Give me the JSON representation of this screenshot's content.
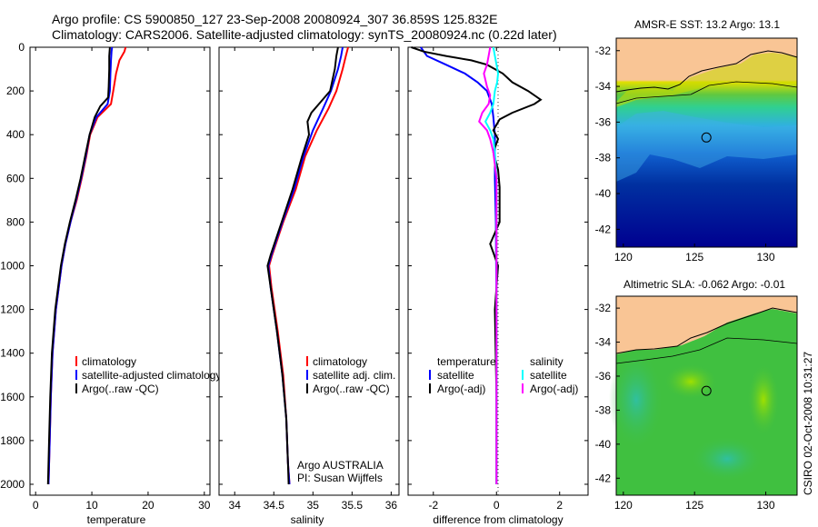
{
  "header": {
    "line1": "Argo profile: CS 5900850_127 23-Sep-2008 20080924_307 36.859S 125.832E",
    "line2": "Climatology: CARS2006. Satellite-adjusted climatology: synTS_20080924.nc (0.22d later)"
  },
  "side_stamp": "CSIRO 02-Oct-2008 10:31:27",
  "colors": {
    "climatology": "#ff0000",
    "satellite": "#0000ff",
    "argo": "#000000",
    "sat_sal": "#00ffff",
    "argo_sal": "#ff00ff",
    "land": "#f9c595"
  },
  "chart_data": [
    {
      "type": "line",
      "id": "temperature",
      "xlabel": "temperature",
      "ylabel": "",
      "xlim": [
        -1,
        31
      ],
      "ylim": [
        2050,
        0
      ],
      "xticks": [
        "0",
        "10",
        "20",
        "30"
      ],
      "yticks": [
        "0",
        "200",
        "400",
        "600",
        "800",
        "1000",
        "1200",
        "1400",
        "1600",
        "1800",
        "2000"
      ],
      "legend": [
        "climatology",
        "satellite-adjusted climatology",
        "Argo(..raw -QC)"
      ],
      "series": [
        {
          "name": "climatology",
          "color": "#ff0000",
          "depth": [
            0,
            20,
            60,
            120,
            200,
            260,
            320,
            400,
            500,
            600,
            700,
            800,
            900,
            1000,
            1200,
            1400,
            1600,
            1800,
            2000
          ],
          "values": [
            16.0,
            15.8,
            14.9,
            14.3,
            13.8,
            13.4,
            11.0,
            9.7,
            9.0,
            8.2,
            7.3,
            6.2,
            5.3,
            4.6,
            3.6,
            3.0,
            2.7,
            2.5,
            2.3
          ]
        },
        {
          "name": "satellite-adjusted climatology",
          "color": "#0000ff",
          "depth": [
            0,
            20,
            60,
            120,
            200,
            260,
            320,
            400,
            500,
            600,
            700,
            800,
            900,
            1000,
            1200,
            1400,
            1600,
            1800,
            2000
          ],
          "values": [
            13.6,
            13.5,
            13.4,
            13.3,
            13.2,
            12.8,
            10.8,
            9.6,
            8.9,
            8.1,
            7.2,
            6.2,
            5.3,
            4.6,
            3.6,
            3.0,
            2.7,
            2.5,
            2.3
          ]
        },
        {
          "name": "Argo(..raw -QC)",
          "color": "#000000",
          "depth": [
            0,
            40,
            100,
            180,
            230,
            250,
            270,
            320,
            400,
            500,
            600,
            700,
            800,
            900,
            1000,
            1200,
            1400,
            1600,
            1800,
            2000
          ],
          "values": [
            13.2,
            13.1,
            13.1,
            13.0,
            12.9,
            12.2,
            11.5,
            10.5,
            9.6,
            8.8,
            8.0,
            7.1,
            6.1,
            5.2,
            4.5,
            3.5,
            2.9,
            2.6,
            2.4,
            2.2
          ]
        }
      ]
    },
    {
      "type": "line",
      "id": "salinity",
      "xlabel": "salinity",
      "ylabel": "",
      "xlim": [
        33.8,
        36.1
      ],
      "ylim": [
        2050,
        0
      ],
      "xticks": [
        "34",
        "34.5",
        "35",
        "35.5",
        "36"
      ],
      "legend": [
        "climatology",
        "satellite adj. clim.",
        "Argo(..raw -QC)"
      ],
      "annotation": [
        "Argo AUSTRALIA",
        "PI: Susan Wijffels"
      ],
      "series": [
        {
          "name": "climatology",
          "color": "#ff0000",
          "depth": [
            0,
            40,
            100,
            200,
            280,
            380,
            500,
            650,
            800,
            950,
            1000,
            1100,
            1300,
            1500,
            1700,
            1900,
            2000
          ],
          "values": [
            35.45,
            35.42,
            35.38,
            35.3,
            35.2,
            35.05,
            34.9,
            34.78,
            34.62,
            34.48,
            34.44,
            34.47,
            34.55,
            34.62,
            34.66,
            34.68,
            34.7
          ]
        },
        {
          "name": "satellite adj. clim.",
          "color": "#0000ff",
          "depth": [
            0,
            40,
            100,
            200,
            280,
            380,
            500,
            650,
            800,
            950,
            1000,
            1100,
            1300,
            1500,
            1700,
            1900,
            2000
          ],
          "values": [
            35.38,
            35.36,
            35.32,
            35.23,
            35.13,
            35.0,
            34.88,
            34.76,
            34.61,
            34.47,
            34.43,
            34.46,
            34.54,
            34.61,
            34.66,
            34.68,
            34.7
          ]
        },
        {
          "name": "Argo(..raw -QC)",
          "color": "#000000",
          "depth": [
            0,
            40,
            100,
            200,
            250,
            300,
            340,
            400,
            500,
            650,
            800,
            950,
            1000,
            1100,
            1300,
            1500,
            1700,
            1900,
            2000
          ],
          "values": [
            35.32,
            35.3,
            35.28,
            35.22,
            35.1,
            34.98,
            34.93,
            34.95,
            34.86,
            34.74,
            34.6,
            34.46,
            34.42,
            34.46,
            34.54,
            34.61,
            34.66,
            34.68,
            34.69
          ]
        }
      ]
    },
    {
      "type": "line",
      "id": "difference",
      "xlabel": "difference from climatology",
      "ylabel": "",
      "xlim": [
        -2.8,
        2.9
      ],
      "ylim": [
        2050,
        0
      ],
      "xticks": [
        "-2",
        "0",
        "2"
      ],
      "legend_columns": [
        {
          "title": "temperature",
          "items": [
            "satellite",
            "Argo(-adj)"
          ]
        },
        {
          "title": "salinity",
          "items": [
            "satellite",
            "Argo(-adj)"
          ]
        }
      ],
      "series": [
        {
          "name": "temperature satellite",
          "color": "#0000ff",
          "depth": [
            0,
            40,
            80,
            120,
            160,
            200,
            260,
            320,
            400,
            600,
            800,
            1000,
            1200,
            1600,
            2000
          ],
          "values": [
            -2.4,
            -2.2,
            -1.6,
            -1.0,
            -0.6,
            -0.3,
            -0.15,
            -0.1,
            -0.05,
            -0.05,
            -0.02,
            -0.01,
            0,
            0,
            0
          ]
        },
        {
          "name": "temperature Argo(-adj)",
          "color": "#000000",
          "depth": [
            0,
            20,
            40,
            60,
            80,
            120,
            160,
            200,
            240,
            260,
            300,
            330,
            380,
            420,
            480,
            560,
            640,
            800,
            900,
            1000,
            1200,
            1600,
            2000
          ],
          "values": [
            -2.7,
            -2.3,
            -1.6,
            -0.8,
            -0.3,
            0.2,
            0.5,
            1.0,
            1.4,
            1.2,
            0.5,
            0.1,
            -0.1,
            0.05,
            -0.1,
            0.05,
            0.1,
            0.1,
            -0.2,
            0.05,
            -0.05,
            0,
            0
          ]
        },
        {
          "name": "salinity satellite",
          "color": "#00ffff",
          "depth": [
            0,
            40,
            80,
            120,
            160,
            200,
            260,
            300,
            340,
            380,
            420,
            480,
            600,
            800,
            1000,
            1200,
            1600,
            2000
          ],
          "values": [
            -0.1,
            -0.05,
            0.0,
            0.05,
            0.02,
            -0.05,
            -0.1,
            -0.2,
            -0.35,
            -0.2,
            -0.1,
            -0.05,
            0,
            0,
            0,
            0,
            0,
            0
          ]
        },
        {
          "name": "salinity Argo(-adj)",
          "color": "#ff00ff",
          "depth": [
            0,
            40,
            80,
            120,
            180,
            220,
            260,
            300,
            340,
            380,
            420,
            480,
            600,
            800,
            1000,
            1200,
            1600,
            2000
          ],
          "values": [
            -0.2,
            -0.25,
            -0.3,
            -0.4,
            -0.3,
            -0.2,
            -0.25,
            -0.45,
            -0.55,
            -0.3,
            -0.2,
            -0.1,
            0,
            0,
            0,
            0,
            0,
            0
          ]
        }
      ]
    },
    {
      "type": "heatmap",
      "id": "sst_map",
      "title": "AMSR-E SST: 13.2 Argo: 13.1",
      "xlim": [
        119.5,
        132.2
      ],
      "ylim": [
        -43,
        -31.3
      ],
      "xticks": [
        "120",
        "125",
        "130"
      ],
      "yticks": [
        "-32",
        "-34",
        "-36",
        "-38",
        "-40",
        "-42"
      ],
      "argo_position": {
        "lon": 125.83,
        "lat": -36.86
      }
    },
    {
      "type": "heatmap",
      "id": "sla_map",
      "title": "Altimetric SLA: -0.062 Argo: -0.01",
      "xlim": [
        119.5,
        132.2
      ],
      "ylim": [
        -43,
        -31.3
      ],
      "xticks": [
        "120",
        "125",
        "130"
      ],
      "yticks": [
        "-32",
        "-34",
        "-36",
        "-38",
        "-40",
        "-42"
      ],
      "argo_position": {
        "lon": 125.83,
        "lat": -36.86
      }
    }
  ]
}
